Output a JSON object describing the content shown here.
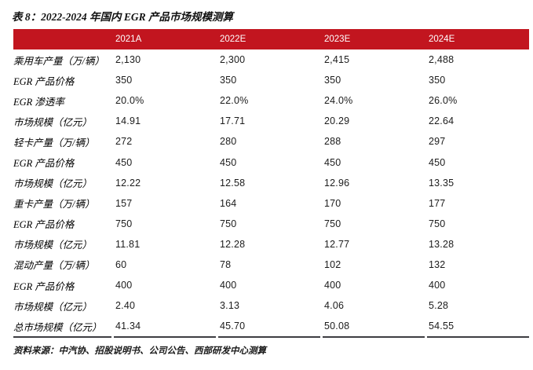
{
  "figure": {
    "title": "表 8：2022-2024 年国内 EGR 产品市场规模测算",
    "source": "资料来源：中汽协、招股说明书、公司公告、西部研发中心测算"
  },
  "table": {
    "header": [
      "2021A",
      "2022E",
      "2023E",
      "2024E"
    ],
    "rows": [
      {
        "label": "乘用车产量（万/辆）",
        "values": [
          "2,130",
          "2,300",
          "2,415",
          "2,488"
        ]
      },
      {
        "label": "EGR 产品价格",
        "values": [
          "350",
          "350",
          "350",
          "350"
        ]
      },
      {
        "label": "EGR 渗透率",
        "values": [
          "20.0%",
          "22.0%",
          "24.0%",
          "26.0%"
        ]
      },
      {
        "label": "市场规模（亿元）",
        "values": [
          "14.91",
          "17.71",
          "20.29",
          "22.64"
        ]
      },
      {
        "label": "轻卡产量（万/辆）",
        "values": [
          "272",
          "280",
          "288",
          "297"
        ]
      },
      {
        "label": "EGR 产品价格",
        "values": [
          "450",
          "450",
          "450",
          "450"
        ]
      },
      {
        "label": "市场规模（亿元）",
        "values": [
          "12.22",
          "12.58",
          "12.96",
          "13.35"
        ]
      },
      {
        "label": "重卡产量（万/辆）",
        "values": [
          "157",
          "164",
          "170",
          "177"
        ]
      },
      {
        "label": "EGR 产品价格",
        "values": [
          "750",
          "750",
          "750",
          "750"
        ]
      },
      {
        "label": "市场规模（亿元）",
        "values": [
          "11.81",
          "12.28",
          "12.77",
          "13.28"
        ]
      },
      {
        "label": "混动产量（万/辆）",
        "values": [
          "60",
          "78",
          "102",
          "132"
        ]
      },
      {
        "label": "EGR 产品价格",
        "values": [
          "400",
          "400",
          "400",
          "400"
        ]
      },
      {
        "label": "市场规模（亿元）",
        "values": [
          "2.40",
          "3.13",
          "4.06",
          "5.28"
        ]
      },
      {
        "label": "总市场规模（亿元）",
        "values": [
          "41.34",
          "45.70",
          "50.08",
          "54.55"
        ]
      }
    ]
  },
  "colors": {
    "header_bg": "#C2151F",
    "header_text": "#FFFFFF",
    "bottom_rule": "#3D3D42"
  }
}
